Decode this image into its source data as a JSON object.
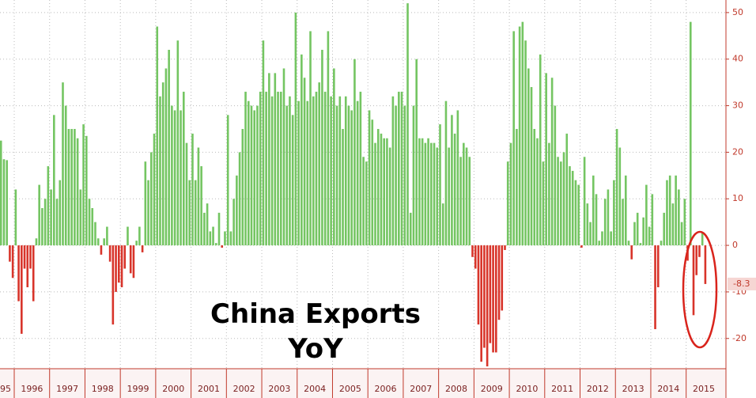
{
  "chart_data": {
    "type": "bar",
    "annotation": [
      "China Exports",
      "YoY"
    ],
    "categories": [
      "95",
      "1996",
      "1997",
      "1998",
      "1999",
      "2000",
      "2001",
      "2002",
      "2003",
      "2004",
      "2005",
      "2006",
      "2007",
      "2008",
      "2009",
      "2010",
      "2011",
      "2012",
      "2013",
      "2014",
      "2015"
    ],
    "values": [
      [
        22.5,
        18.5,
        18.3,
        -3.5,
        -7
      ],
      [
        12,
        -12,
        -19,
        -5,
        -9,
        -5,
        -12,
        1.5,
        13,
        8,
        10,
        17
      ],
      [
        12,
        28,
        10,
        14,
        35,
        30,
        25,
        25,
        25,
        23,
        12,
        26
      ],
      [
        23.5,
        10,
        8,
        5,
        1.5,
        -2,
        1.5,
        4,
        -3.5,
        -17,
        -10,
        -8
      ],
      [
        -9,
        -5,
        4,
        -6,
        -7,
        1,
        4,
        -1.5,
        18,
        14,
        20,
        24
      ],
      [
        47,
        32,
        35,
        38,
        42,
        30,
        29,
        44,
        29,
        33,
        22,
        14
      ],
      [
        24,
        14,
        21,
        17,
        7,
        9,
        3,
        4,
        0.5,
        7,
        -0.5,
        3
      ],
      [
        28,
        3,
        10,
        15,
        20,
        25,
        33,
        31,
        30,
        29,
        30,
        33
      ],
      [
        44,
        33,
        37,
        32,
        37,
        33,
        33,
        38,
        30,
        32,
        28,
        50
      ],
      [
        31,
        41,
        36,
        31,
        46,
        32,
        33,
        35,
        42,
        33,
        46,
        32
      ],
      [
        38,
        30,
        32,
        25,
        32,
        30,
        29,
        40,
        31,
        33,
        19,
        18
      ],
      [
        29,
        27,
        22,
        25,
        24,
        23,
        23,
        21,
        32,
        30,
        33,
        33
      ],
      [
        30,
        52,
        7,
        30,
        40,
        23,
        23,
        22,
        23,
        22,
        22,
        21
      ],
      [
        26,
        9,
        31,
        21,
        28,
        24,
        29,
        19,
        22,
        21,
        19,
        -2.5
      ],
      [
        -5,
        -17,
        -25,
        -22,
        -26,
        -21,
        -23,
        -23,
        -16,
        -14,
        -1,
        18
      ],
      [
        22,
        46,
        25,
        47,
        48,
        44,
        38,
        34,
        25,
        23,
        41,
        18
      ],
      [
        37,
        22,
        36,
        30,
        19,
        18,
        20,
        24,
        17,
        16,
        14,
        13
      ],
      [
        -0.5,
        19,
        9,
        5,
        15,
        11,
        1,
        3,
        10,
        12,
        3,
        14
      ],
      [
        25,
        21,
        10,
        15,
        1,
        -3,
        5,
        7,
        0.5,
        6,
        13,
        4
      ],
      [
        11,
        -18,
        -9,
        1,
        7,
        14,
        15,
        9,
        15,
        12,
        5,
        10
      ],
      [
        -3.3,
        48,
        -15,
        -6.4,
        -2.5,
        2.8,
        -8.3
      ]
    ],
    "colors": {
      "positive": "#74c562",
      "negative": "#d8342a"
    },
    "ylim": [
      -26.5,
      52.7
    ],
    "yticks": [
      -20,
      -10,
      0,
      10,
      20,
      30,
      40,
      50
    ],
    "grid": true,
    "y_axis_side": "right"
  }
}
